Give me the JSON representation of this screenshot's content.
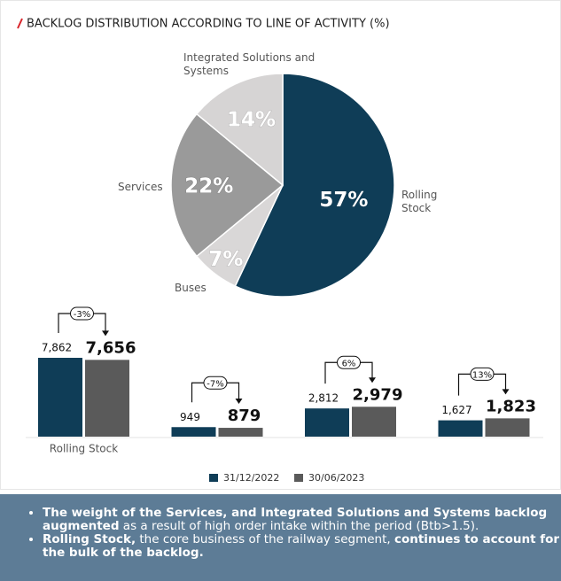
{
  "chart_data": [
    {
      "type": "pie",
      "title": "BACKLOG DISTRIBUTION ACCORDING TO LINE OF ACTIVITY (%)",
      "categories": [
        "Rolling Stock",
        "Buses",
        "Services",
        "Integrated Solutions and Systems"
      ],
      "values": [
        57,
        7,
        22,
        14
      ],
      "value_labels": [
        "57%",
        "7%",
        "22%",
        "14%"
      ],
      "colors": [
        "#0f3d57",
        "#d9d7d7",
        "#9a9a9a",
        "#d6d4d4"
      ]
    },
    {
      "type": "bar",
      "categories": [
        "Rolling Stock",
        null,
        null,
        null
      ],
      "series": [
        {
          "name": "31/12/2022",
          "color": "#0f3d57",
          "values": [
            7862,
            949,
            2812,
            1627
          ],
          "value_labels": [
            "7,862",
            "949",
            "2,812",
            "1,627"
          ]
        },
        {
          "name": "30/06/2023",
          "color": "#5a5a5a",
          "values": [
            7656,
            879,
            2979,
            1823
          ],
          "value_labels": [
            "7,656",
            "879",
            "2,979",
            "1,823"
          ]
        }
      ],
      "annotations": [
        "-3%",
        "-7%",
        "6%",
        "13%"
      ]
    }
  ],
  "notes": [
    [
      {
        "text": "The weight of the Services, and Integrated Solutions and Systems backlog augmented",
        "bold": true
      },
      {
        "text": " as a result of high order intake within the period (Btb>1.5).",
        "bold": false
      }
    ],
    [
      {
        "text": "Rolling Stock,",
        "bold": true
      },
      {
        "text": " the core business of the railway segment, ",
        "bold": false
      },
      {
        "text": "continues to account for the bulk of the backlog.",
        "bold": true
      }
    ]
  ]
}
